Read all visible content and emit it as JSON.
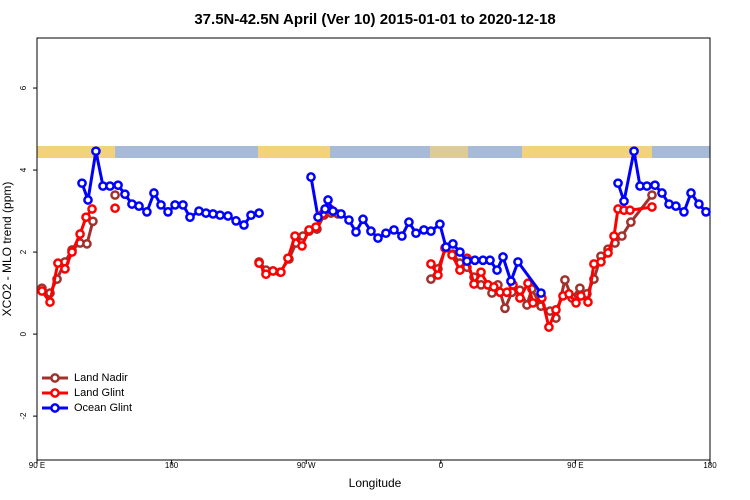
{
  "chart_data": {
    "type": "line",
    "title": "37.5N-42.5N April (Ver 10)   2015-01-01 to 2020-12-18",
    "x_label": "Longitude",
    "y_label": "XCO2 - MLO trend (ppm)",
    "xlim": [
      90,
      540
    ],
    "xticks": [
      {
        "value": 90,
        "label": "90 E"
      },
      180,
      {
        "value": 270,
        "label": "90 W"
      },
      {
        "value": 360,
        "label": "0"
      },
      {
        "value": 450,
        "label": "90 E"
      },
      {
        "value": 540,
        "label": "180"
      }
    ],
    "ylim": [
      -3.07,
      7.22
    ],
    "yticks": [
      -2,
      0,
      2,
      4,
      6
    ],
    "grid": false,
    "legend": "bottom-left",
    "series": [
      {
        "name": "Land Nadir",
        "color": "#a0322d",
        "x": [
          93.3,
          98.7,
          103.4,
          108.7,
          113.4,
          118.8,
          123.4,
          127.4,
          null,
          142.2,
          null,
          238.5,
          243.1,
          247.8,
          252.5,
          258.5,
          263.2,
          267.8,
          271.9,
          277.2,
          281.9,
          286.6,
          291.2,
          null,
          353.4,
          358.1,
          363.5,
          368.1,
          372.8,
          377.5,
          382.2,
          386.9,
          391.5,
          394.2,
          398.2,
          402.9,
          407.6,
          412.9,
          417.6,
          420.9,
          427.0,
          433.0,
          437.0,
          443.0,
          447.7,
          453.0,
          457.7,
          462.4,
          467.1,
          471.8,
          476.5,
          481.1,
          487.1,
          501.2
        ],
        "values": [
          1.12,
          1.0,
          1.34,
          1.76,
          2.05,
          2.22,
          2.2,
          2.75,
          null,
          3.39,
          null,
          1.76,
          1.56,
          1.54,
          1.51,
          1.83,
          2.22,
          2.39,
          2.51,
          2.56,
          2.9,
          2.95,
          2.93,
          null,
          1.34,
          1.59,
          2.12,
          1.95,
          1.73,
          1.63,
          1.39,
          1.2,
          1.2,
          1.0,
          1.2,
          0.63,
          1.02,
          1.07,
          0.71,
          1.1,
          0.68,
          0.56,
          0.39,
          1.32,
          0.88,
          1.12,
          0.98,
          1.34,
          1.9,
          2.07,
          2.22,
          2.39,
          2.73,
          3.39
        ]
      },
      {
        "name": "Land Glint",
        "color": "#ff0000",
        "x": [
          93.3,
          98.7,
          104.0,
          108.7,
          113.4,
          118.8,
          122.8,
          126.8,
          null,
          142.2,
          null,
          238.5,
          243.1,
          247.8,
          253.1,
          257.8,
          262.5,
          267.2,
          271.9,
          276.5,
          281.2,
          285.9,
          null,
          353.4,
          358.1,
          362.8,
          367.5,
          372.8,
          377.5,
          382.2,
          386.9,
          391.5,
          395.5,
          399.6,
          404.2,
          408.3,
          412.9,
          418.3,
          421.6,
          427.6,
          432.3,
          437.0,
          441.7,
          445.7,
          450.4,
          453.7,
          458.4,
          462.4,
          467.1,
          471.8,
          475.8,
          478.5,
          482.5,
          486.5,
          501.2
        ],
        "values": [
          1.05,
          0.78,
          1.73,
          1.59,
          2.0,
          2.44,
          2.85,
          3.05,
          null,
          3.07,
          null,
          1.73,
          1.46,
          1.54,
          1.51,
          1.85,
          2.39,
          2.15,
          2.54,
          2.61,
          2.93,
          3.05,
          null,
          1.71,
          1.44,
          2.1,
          1.93,
          1.56,
          1.85,
          1.22,
          1.51,
          1.2,
          1.15,
          1.02,
          1.02,
          1.2,
          0.88,
          1.24,
          0.76,
          0.88,
          0.17,
          0.59,
          0.93,
          0.98,
          0.76,
          0.93,
          0.78,
          1.71,
          1.76,
          1.98,
          2.39,
          3.05,
          3.02,
          3.02,
          3.1
        ]
      },
      {
        "name": "Ocean Glint",
        "color": "#0000ff",
        "x": [
          120.1,
          124.1,
          129.4,
          134.1,
          138.8,
          144.2,
          148.8,
          153.5,
          158.2,
          163.5,
          168.2,
          172.9,
          177.6,
          182.3,
          187.6,
          192.3,
          198.3,
          203.0,
          207.7,
          212.4,
          217.7,
          223.1,
          228.4,
          233.1,
          238.5,
          null,
          273.2,
          277.9,
          282.6,
          284.6,
          287.9,
          293.3,
          298.6,
          303.3,
          308.0,
          313.3,
          318.0,
          323.3,
          328.7,
          334.0,
          338.7,
          343.4,
          348.7,
          353.4,
          359.4,
          363.5,
          368.1,
          372.8,
          377.5,
          382.8,
          388.2,
          392.9,
          397.6,
          401.6,
          406.9,
          411.6,
          427.0,
          null,
          478.5,
          482.5,
          489.2,
          493.2,
          497.8,
          503.2,
          507.9,
          512.6,
          517.2,
          522.6,
          527.3,
          532.6,
          537.3
        ],
        "values": [
          3.68,
          3.27,
          4.46,
          3.61,
          3.61,
          3.63,
          3.41,
          3.17,
          3.12,
          2.98,
          3.44,
          3.15,
          2.98,
          3.15,
          3.15,
          2.85,
          3.0,
          2.95,
          2.93,
          2.9,
          2.88,
          2.76,
          2.66,
          2.9,
          2.95,
          null,
          3.83,
          2.85,
          3.05,
          3.27,
          3.0,
          2.93,
          2.78,
          2.49,
          2.8,
          2.51,
          2.34,
          2.46,
          2.54,
          2.39,
          2.73,
          2.46,
          2.54,
          2.51,
          2.68,
          2.12,
          2.2,
          2.0,
          1.78,
          1.8,
          1.8,
          1.8,
          1.56,
          1.88,
          1.29,
          1.76,
          1.0,
          null,
          3.68,
          3.24,
          4.46,
          3.61,
          3.61,
          3.63,
          3.44,
          3.17,
          3.12,
          2.98,
          3.44,
          3.17,
          2.98
        ]
      }
    ]
  }
}
